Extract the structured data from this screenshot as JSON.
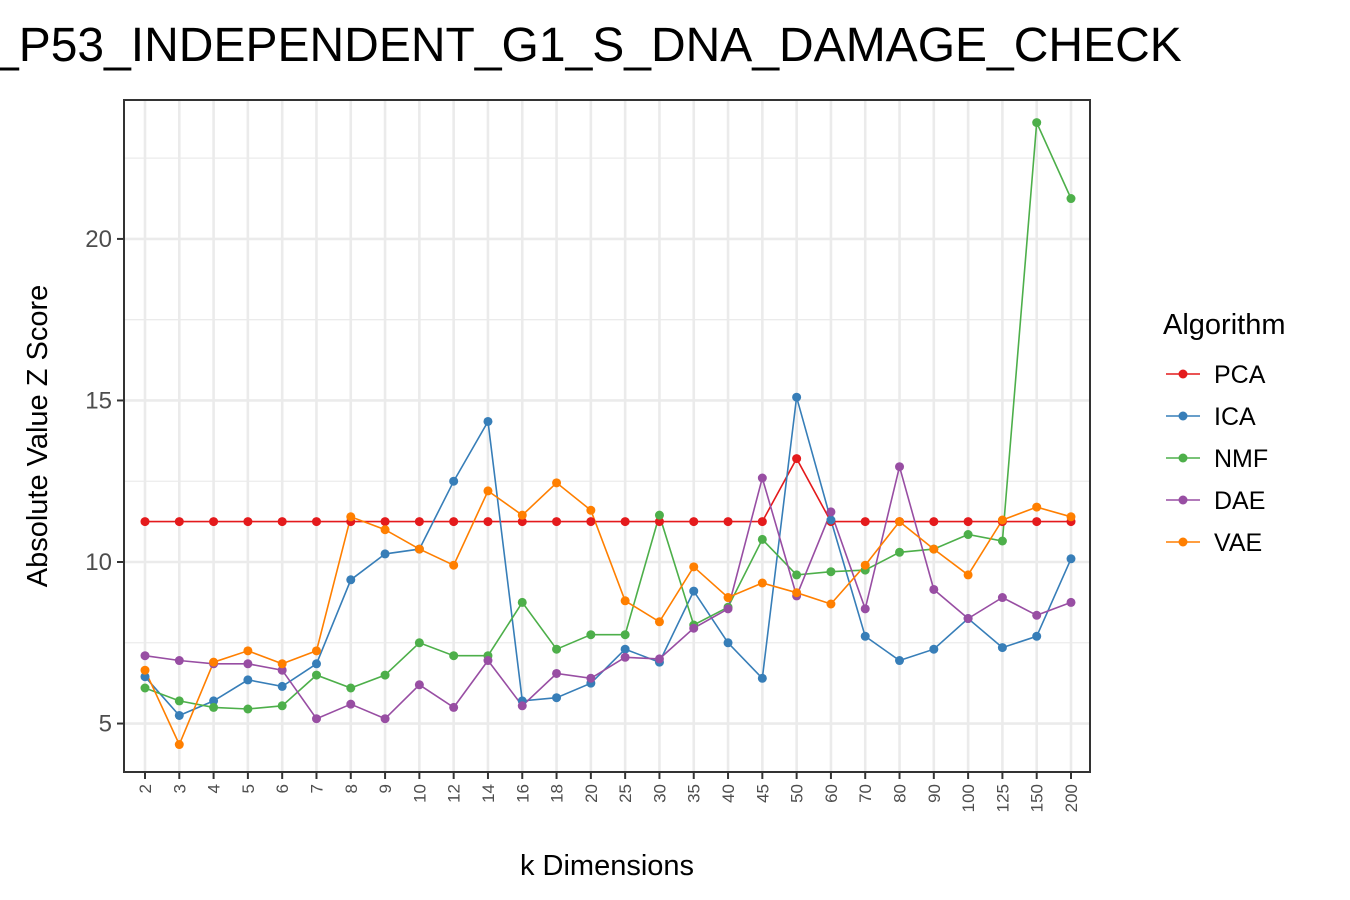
{
  "chart_data": {
    "type": "line",
    "title": "_P53_INDEPENDENT_G1_S_DNA_DAMAGE_CHECK",
    "xlabel": "k Dimensions",
    "ylabel": "Absolute Value Z Score",
    "categories": [
      "2",
      "3",
      "4",
      "5",
      "6",
      "7",
      "8",
      "9",
      "10",
      "12",
      "14",
      "16",
      "18",
      "20",
      "25",
      "30",
      "35",
      "40",
      "45",
      "50",
      "60",
      "70",
      "80",
      "90",
      "100",
      "125",
      "150",
      "200"
    ],
    "yticks": [
      5,
      10,
      15,
      20
    ],
    "ylim": [
      3.5,
      24.3
    ],
    "grid": true,
    "legend": {
      "title": "Algorithm",
      "placement": "right"
    },
    "series": [
      {
        "name": "PCA",
        "color": "#e41a1c",
        "values": [
          11.25,
          11.25,
          11.25,
          11.25,
          11.25,
          11.25,
          11.25,
          11.25,
          11.25,
          11.25,
          11.25,
          11.25,
          11.25,
          11.25,
          11.25,
          11.25,
          11.25,
          11.25,
          11.25,
          13.2,
          11.25,
          11.25,
          11.25,
          11.25,
          11.25,
          11.25,
          11.25,
          11.25
        ]
      },
      {
        "name": "ICA",
        "color": "#377eb8",
        "values": [
          6.45,
          5.25,
          5.7,
          6.35,
          6.15,
          6.85,
          9.45,
          10.25,
          10.4,
          12.5,
          14.35,
          5.7,
          5.8,
          6.25,
          7.3,
          6.9,
          9.1,
          7.5,
          6.4,
          15.1,
          11.3,
          7.7,
          6.95,
          7.3,
          8.25,
          7.35,
          7.7,
          10.1
        ]
      },
      {
        "name": "NMF",
        "color": "#4daf4a",
        "values": [
          6.1,
          5.7,
          5.5,
          5.45,
          5.55,
          6.5,
          6.1,
          6.5,
          7.5,
          7.1,
          7.1,
          8.75,
          7.3,
          7.75,
          7.75,
          11.45,
          8.05,
          8.6,
          10.7,
          9.6,
          9.7,
          9.75,
          10.3,
          10.4,
          10.85,
          10.65,
          23.6,
          21.25
        ]
      },
      {
        "name": "DAE",
        "color": "#984ea3",
        "values": [
          7.1,
          6.95,
          6.85,
          6.85,
          6.65,
          5.15,
          5.6,
          5.15,
          6.2,
          5.5,
          6.95,
          5.55,
          6.55,
          6.4,
          7.05,
          7.0,
          7.95,
          8.55,
          12.6,
          8.95,
          11.55,
          8.55,
          12.95,
          9.15,
          8.25,
          8.9,
          8.35,
          8.75
        ]
      },
      {
        "name": "VAE",
        "color": "#ff7f00",
        "values": [
          6.65,
          4.35,
          6.9,
          7.25,
          6.85,
          7.25,
          11.4,
          11.0,
          10.4,
          9.9,
          12.2,
          11.45,
          12.45,
          11.6,
          8.8,
          8.15,
          9.85,
          8.9,
          9.35,
          9.05,
          8.7,
          9.9,
          11.25,
          10.4,
          9.6,
          11.3,
          11.7,
          11.4
        ]
      }
    ]
  }
}
